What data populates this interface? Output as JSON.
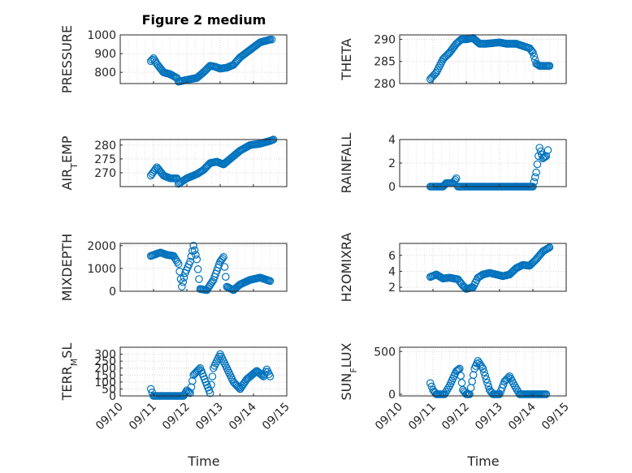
{
  "figure": {
    "title": "Figure 2 medium",
    "xlabel": "Time"
  },
  "colors": {
    "marker": "#0072bd",
    "axes": "#262626",
    "grid": "#d6d6d6"
  },
  "chart_data": [
    {
      "type": "scatter",
      "title": "Figure 2 medium",
      "ylabel": "PRESSURE",
      "ylim": [
        740,
        1000
      ],
      "yticks": [
        "800",
        "900",
        "1000"
      ],
      "ytick_values": [
        800,
        900,
        1000
      ],
      "x_range": [
        "09/10",
        "09/15"
      ],
      "keyframes": [
        [
          0.92,
          860
        ],
        [
          1.0,
          875
        ],
        [
          1.1,
          845
        ],
        [
          1.3,
          800
        ],
        [
          1.5,
          790
        ],
        [
          1.7,
          770
        ],
        [
          1.75,
          750
        ],
        [
          2.0,
          760
        ],
        [
          2.3,
          770
        ],
        [
          2.5,
          800
        ],
        [
          2.7,
          835
        ],
        [
          2.85,
          830
        ],
        [
          3.0,
          820
        ],
        [
          3.2,
          825
        ],
        [
          3.4,
          840
        ],
        [
          3.6,
          880
        ],
        [
          3.9,
          920
        ],
        [
          4.2,
          960
        ],
        [
          4.5,
          975
        ],
        [
          4.55,
          975
        ]
      ],
      "marker": "o",
      "grid": true
    },
    {
      "type": "scatter",
      "ylabel": "THETA",
      "ylim": [
        280,
        291
      ],
      "yticks": [
        "280",
        "285",
        "290"
      ],
      "ytick_values": [
        280,
        285,
        290
      ],
      "x_range": [
        "09/10",
        "09/15"
      ],
      "keyframes": [
        [
          0.92,
          281
        ],
        [
          1.1,
          282.5
        ],
        [
          1.3,
          285.5
        ],
        [
          1.5,
          287
        ],
        [
          1.7,
          289
        ],
        [
          1.85,
          290
        ],
        [
          2.0,
          290
        ],
        [
          2.2,
          290.3
        ],
        [
          2.4,
          289
        ],
        [
          2.6,
          289
        ],
        [
          3.0,
          289.3
        ],
        [
          3.2,
          289
        ],
        [
          3.5,
          289
        ],
        [
          3.9,
          288
        ],
        [
          4.0,
          287
        ],
        [
          4.1,
          284.5
        ],
        [
          4.2,
          284
        ],
        [
          4.5,
          284
        ]
      ],
      "marker": "o",
      "grid": true
    },
    {
      "type": "scatter",
      "ylabel": "AIR_TEMP",
      "ylim": [
        265,
        282
      ],
      "yticks": [
        "270",
        "275",
        "280"
      ],
      "ytick_values": [
        270,
        275,
        280
      ],
      "x_range": [
        "09/10",
        "09/15"
      ],
      "keyframes": [
        [
          0.92,
          269
        ],
        [
          1.1,
          272
        ],
        [
          1.3,
          269
        ],
        [
          1.5,
          268
        ],
        [
          1.7,
          268
        ],
        [
          1.75,
          266
        ],
        [
          2.0,
          268
        ],
        [
          2.3,
          269.5
        ],
        [
          2.5,
          271
        ],
        [
          2.7,
          273.5
        ],
        [
          2.9,
          274
        ],
        [
          3.1,
          273
        ],
        [
          3.3,
          275
        ],
        [
          3.6,
          278
        ],
        [
          3.9,
          280
        ],
        [
          4.2,
          280.5
        ],
        [
          4.5,
          281.5
        ],
        [
          4.6,
          282
        ]
      ],
      "marker": "o",
      "grid": true
    },
    {
      "type": "scatter",
      "ylabel": "RAINFALL",
      "ylim": [
        0,
        4
      ],
      "yticks": [
        "0",
        "2",
        "4"
      ],
      "ytick_values": [
        0,
        2,
        4
      ],
      "x_range": [
        "09/10",
        "09/15"
      ],
      "keyframes": [
        [
          0.92,
          0
        ],
        [
          1.3,
          0
        ],
        [
          1.4,
          0.3
        ],
        [
          1.6,
          0.3
        ],
        [
          1.7,
          0.7
        ],
        [
          1.75,
          0
        ],
        [
          3.9,
          0
        ],
        [
          4.0,
          0
        ],
        [
          4.1,
          1.2
        ],
        [
          4.2,
          3.3
        ],
        [
          4.3,
          2.4
        ],
        [
          4.4,
          2.6
        ],
        [
          4.45,
          3.1
        ]
      ],
      "marker": "o",
      "grid": true
    },
    {
      "type": "scatter",
      "ylabel": "MIXDEPTH",
      "ylim": [
        0,
        2100
      ],
      "yticks": [
        "0",
        "1000",
        "2000"
      ],
      "ytick_values": [
        0,
        1000,
        2000
      ],
      "x_range": [
        "09/10",
        "09/15"
      ],
      "keyframes": [
        [
          0.92,
          1550
        ],
        [
          1.2,
          1700
        ],
        [
          1.4,
          1600
        ],
        [
          1.6,
          1550
        ],
        [
          1.75,
          1200
        ],
        [
          1.85,
          200
        ],
        [
          1.95,
          800
        ],
        [
          2.1,
          1300
        ],
        [
          2.2,
          2000
        ],
        [
          2.3,
          1400
        ],
        [
          2.4,
          100
        ],
        [
          2.6,
          50
        ],
        [
          2.8,
          500
        ],
        [
          3.0,
          1300
        ],
        [
          3.1,
          1500
        ],
        [
          3.2,
          200
        ],
        [
          3.4,
          50
        ],
        [
          3.6,
          300
        ],
        [
          3.9,
          500
        ],
        [
          4.2,
          600
        ],
        [
          4.5,
          450
        ]
      ],
      "marker": "o",
      "grid": true
    },
    {
      "type": "scatter",
      "ylabel": "H2OMIXRA",
      "ylim": [
        1.5,
        7.5
      ],
      "yticks": [
        "2",
        "4",
        "6"
      ],
      "ytick_values": [
        2,
        4,
        6
      ],
      "x_range": [
        "09/10",
        "09/15"
      ],
      "keyframes": [
        [
          0.92,
          3.3
        ],
        [
          1.1,
          3.6
        ],
        [
          1.3,
          3.1
        ],
        [
          1.5,
          3.2
        ],
        [
          1.75,
          3.0
        ],
        [
          1.9,
          2.2
        ],
        [
          2.0,
          1.8
        ],
        [
          2.2,
          2.0
        ],
        [
          2.35,
          3.2
        ],
        [
          2.5,
          3.6
        ],
        [
          2.7,
          3.8
        ],
        [
          2.9,
          3.6
        ],
        [
          3.1,
          3.4
        ],
        [
          3.3,
          3.6
        ],
        [
          3.5,
          4.4
        ],
        [
          3.7,
          4.8
        ],
        [
          3.9,
          4.7
        ],
        [
          4.1,
          5.5
        ],
        [
          4.3,
          6.5
        ],
        [
          4.5,
          7.0
        ]
      ],
      "marker": "o",
      "grid": true
    },
    {
      "type": "scatter",
      "ylabel": "TERR_MSL",
      "ylim": [
        0,
        350
      ],
      "yticks": [
        "0",
        "50",
        "100",
        "150",
        "200",
        "250",
        "300"
      ],
      "ytick_values": [
        0,
        50,
        100,
        150,
        200,
        250,
        300
      ],
      "x_range": [
        "09/10",
        "09/15"
      ],
      "xticks": [
        "09/10",
        "09/11",
        "09/12",
        "09/13",
        "09/14",
        "09/15"
      ],
      "keyframes": [
        [
          0.92,
          50
        ],
        [
          1.0,
          0
        ],
        [
          1.9,
          0
        ],
        [
          2.0,
          40
        ],
        [
          2.1,
          20
        ],
        [
          2.2,
          150
        ],
        [
          2.4,
          200
        ],
        [
          2.6,
          80
        ],
        [
          2.7,
          20
        ],
        [
          2.8,
          200
        ],
        [
          3.0,
          300
        ],
        [
          3.2,
          200
        ],
        [
          3.4,
          100
        ],
        [
          3.6,
          50
        ],
        [
          3.8,
          120
        ],
        [
          4.1,
          180
        ],
        [
          4.3,
          140
        ],
        [
          4.4,
          190
        ],
        [
          4.5,
          140
        ]
      ],
      "marker": "o",
      "grid": true
    },
    {
      "type": "scatter",
      "ylabel": "SUN_FLUX",
      "ylim": [
        -20,
        550
      ],
      "yticks": [
        "0",
        "500"
      ],
      "ytick_values": [
        0,
        500
      ],
      "x_range": [
        "09/10",
        "09/15"
      ],
      "xticks": [
        "09/10",
        "09/11",
        "09/12",
        "09/13",
        "09/14",
        "09/15"
      ],
      "keyframes": [
        [
          0.92,
          130
        ],
        [
          1.0,
          50
        ],
        [
          1.1,
          0
        ],
        [
          1.35,
          0
        ],
        [
          1.5,
          100
        ],
        [
          1.7,
          270
        ],
        [
          1.8,
          300
        ],
        [
          1.9,
          50
        ],
        [
          2.0,
          0
        ],
        [
          2.1,
          0
        ],
        [
          2.25,
          300
        ],
        [
          2.35,
          390
        ],
        [
          2.5,
          300
        ],
        [
          2.7,
          50
        ],
        [
          2.8,
          0
        ],
        [
          3.0,
          0
        ],
        [
          3.15,
          150
        ],
        [
          3.3,
          210
        ],
        [
          3.45,
          100
        ],
        [
          3.6,
          0
        ],
        [
          4.0,
          0
        ],
        [
          4.4,
          0
        ]
      ],
      "marker": "o",
      "grid": true
    }
  ]
}
